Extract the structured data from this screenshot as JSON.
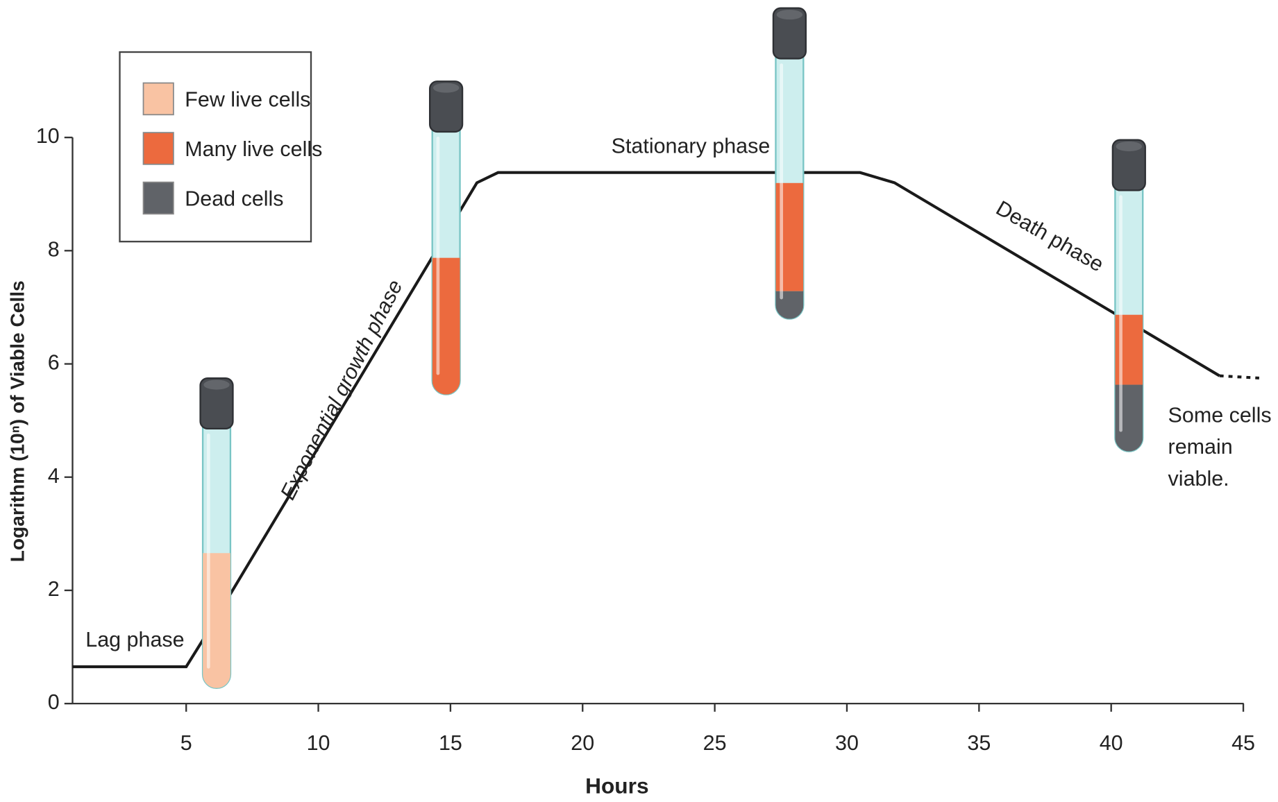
{
  "chart_data": {
    "type": "line",
    "y_label": "Logarithm (10ⁿ) of Viable Cells",
    "x_label": "Hours",
    "xlim": [
      0.7,
      45.6
    ],
    "xticks": [
      5,
      10,
      15,
      20,
      25,
      30,
      35,
      40,
      45
    ],
    "ylim": [
      0,
      10
    ],
    "yticks": [
      0,
      2,
      4,
      6,
      8,
      10
    ],
    "series": [
      {
        "color": "#1a1a1a",
        "dash": "solid",
        "x": [
          0.7,
          5,
          5.6,
          16,
          16.8,
          30.5,
          31.8,
          44.1
        ],
        "values": [
          0.65,
          0.65,
          1.1,
          9.2,
          9.38,
          9.38,
          9.2,
          5.79
        ]
      },
      {
        "color": "#1a1a1a",
        "dash": "dotted",
        "x": [
          44.1,
          45.6
        ],
        "values": [
          5.79,
          5.75
        ]
      }
    ],
    "legend": [
      {
        "label": "Few live cells",
        "color": "#f9c3a3"
      },
      {
        "label": "Many live cells",
        "color": "#ec6a3e"
      },
      {
        "label": "Dead cells",
        "color": "#606368"
      }
    ],
    "annotations": {
      "lag": "Lag phase",
      "exponential": "Exponential growth phase",
      "stationary": "Stationary phase",
      "death": "Death phase",
      "viable": [
        "Some cells",
        "remain",
        "viable."
      ]
    }
  }
}
